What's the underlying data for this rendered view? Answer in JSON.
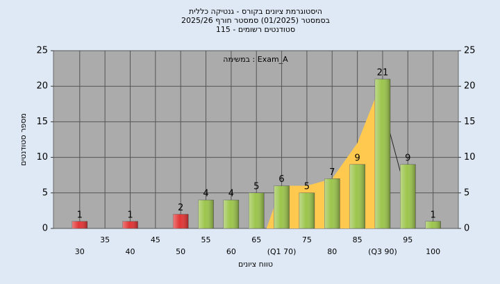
{
  "chart_data": {
    "type": "bar",
    "title": [
      "היסטוגרמת ציונים בקורס - גנטיקה כללית",
      "בסמסטר  (01/2025)  סמסטר חורף 2025/26",
      "סטודנטים רשומים - 115"
    ],
    "annotation": "במשימה : Exam_A",
    "y_label": "מספר סטודנטים",
    "x_label": "טווח ציונים",
    "categories": [
      "30",
      "35",
      "40",
      "45",
      "50",
      "55",
      "60",
      "65",
      "(Q1 70)",
      "75",
      "80",
      "85",
      "(Q3 90)",
      "95",
      "100"
    ],
    "x": [
      30,
      35,
      40,
      45,
      50,
      55,
      60,
      65,
      70,
      75,
      80,
      85,
      90,
      95,
      100
    ],
    "values": [
      1,
      0,
      1,
      0,
      2,
      4,
      4,
      5,
      6,
      5,
      7,
      9,
      21,
      9,
      1
    ],
    "colors": [
      "#e23434",
      "#e23434",
      "#e23434",
      "#e23434",
      "#e23434",
      "#9cc54c",
      "#9cc54c",
      "#9cc54c",
      "#9cc54c",
      "#9cc54c",
      "#9cc54c",
      "#9cc54c",
      "#9cc54c",
      "#9cc54c",
      "#9cc54c"
    ],
    "band": {
      "x": [
        67,
        70,
        75,
        80,
        85,
        90
      ],
      "values": [
        0,
        6,
        6,
        7,
        12,
        21
      ],
      "color": "#ffc94f"
    },
    "trend": {
      "x": [
        90.5,
        93.5
      ],
      "values": [
        16,
        8
      ],
      "color": "#222222"
    },
    "xlim": [
      24.8,
      105
    ],
    "ylim": [
      0,
      25
    ],
    "yticks": [
      0,
      5,
      10,
      15,
      20,
      25
    ],
    "y2lim": [
      0,
      25
    ],
    "y2ticks": [
      0,
      5,
      10,
      15,
      20,
      25
    ],
    "grid": true
  }
}
